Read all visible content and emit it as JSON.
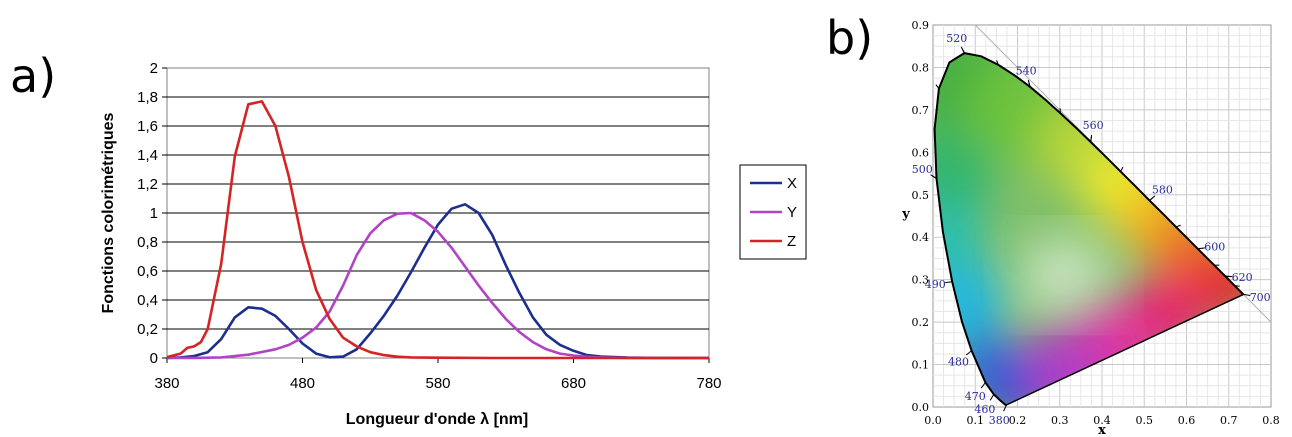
{
  "panels": [
    {
      "label": "a)"
    },
    {
      "label": "b)"
    }
  ],
  "chart_data": [
    {
      "type": "line",
      "title": "",
      "xlabel": "Longueur d'onde λ [nm]",
      "ylabel": "Fonctions colorimétriques",
      "xlim": [
        380,
        780
      ],
      "ylim": [
        0,
        2
      ],
      "x_ticks": [
        "380",
        "480",
        "580",
        "680",
        "780"
      ],
      "y_ticks": [
        "0",
        "0,2",
        "0,4",
        "0,6",
        "0,8",
        "1",
        "1,2",
        "1,4",
        "1,6",
        "1,8",
        "2"
      ],
      "grid": "horizontal",
      "legend": "right",
      "series": [
        {
          "name": "X",
          "color": "#1c2f8f",
          "x": [
            380,
            390,
            400,
            410,
            420,
            430,
            440,
            450,
            460,
            470,
            480,
            490,
            500,
            510,
            520,
            530,
            540,
            550,
            560,
            570,
            580,
            590,
            600,
            610,
            620,
            630,
            640,
            650,
            660,
            670,
            680,
            690,
            700,
            720,
            740,
            780
          ],
          "y": [
            0.001,
            0.004,
            0.014,
            0.04,
            0.13,
            0.28,
            0.35,
            0.34,
            0.29,
            0.2,
            0.1,
            0.03,
            0.005,
            0.01,
            0.06,
            0.17,
            0.29,
            0.43,
            0.59,
            0.76,
            0.92,
            1.03,
            1.06,
            1.0,
            0.85,
            0.64,
            0.45,
            0.28,
            0.16,
            0.09,
            0.05,
            0.02,
            0.01,
            0.003,
            0.001,
            0
          ]
        },
        {
          "name": "Y",
          "color": "#b044c4",
          "x": [
            380,
            400,
            420,
            440,
            460,
            470,
            480,
            490,
            500,
            510,
            520,
            530,
            540,
            550,
            560,
            570,
            580,
            590,
            600,
            610,
            620,
            630,
            640,
            650,
            660,
            670,
            680,
            690,
            700,
            720,
            740,
            780
          ],
          "y": [
            0,
            0.0004,
            0.004,
            0.023,
            0.06,
            0.09,
            0.14,
            0.21,
            0.32,
            0.5,
            0.71,
            0.86,
            0.95,
            0.995,
            1.0,
            0.95,
            0.87,
            0.76,
            0.63,
            0.5,
            0.38,
            0.27,
            0.18,
            0.11,
            0.06,
            0.03,
            0.017,
            0.008,
            0.004,
            0.001,
            0,
            0
          ]
        },
        {
          "name": "Z",
          "color": "#d42424",
          "x": [
            380,
            390,
            395,
            400,
            405,
            410,
            420,
            430,
            440,
            450,
            460,
            470,
            480,
            490,
            500,
            510,
            520,
            530,
            540,
            550,
            560,
            580,
            620,
            780
          ],
          "y": [
            0.006,
            0.03,
            0.07,
            0.08,
            0.11,
            0.2,
            0.65,
            1.39,
            1.75,
            1.77,
            1.6,
            1.25,
            0.8,
            0.47,
            0.27,
            0.14,
            0.08,
            0.04,
            0.02,
            0.009,
            0.004,
            0.002,
            0,
            0
          ]
        }
      ]
    },
    {
      "type": "scatter",
      "title": "",
      "xlabel": "x",
      "ylabel": "y",
      "xlim": [
        0.0,
        0.8
      ],
      "ylim": [
        0.0,
        0.9
      ],
      "x_ticks": [
        "0.0",
        "0.1",
        "0.2",
        "0.3",
        "0.4",
        "0.5",
        "0.6",
        "0.7",
        "0.8"
      ],
      "y_ticks": [
        "0.0",
        "0.1",
        "0.2",
        "0.3",
        "0.4",
        "0.5",
        "0.6",
        "0.7",
        "0.8",
        "0.9"
      ],
      "grid": "on",
      "locus": {
        "x": [
          0.1741,
          0.1738,
          0.1733,
          0.1726,
          0.1714,
          0.1689,
          0.1644,
          0.1566,
          0.144,
          0.1241,
          0.0913,
          0.0687,
          0.0454,
          0.0235,
          0.0082,
          0.0039,
          0.0139,
          0.0389,
          0.0743,
          0.1142,
          0.1547,
          0.1929,
          0.2296,
          0.2658,
          0.3016,
          0.3373,
          0.3731,
          0.4087,
          0.4441,
          0.4788,
          0.5125,
          0.5448,
          0.5752,
          0.6029,
          0.627,
          0.6482,
          0.6658,
          0.6801,
          0.6915,
          0.7006,
          0.714,
          0.7347
        ],
        "y": [
          0.005,
          0.0049,
          0.0048,
          0.0048,
          0.0051,
          0.0069,
          0.0109,
          0.0177,
          0.0297,
          0.0578,
          0.1327,
          0.2007,
          0.295,
          0.4127,
          0.5384,
          0.6548,
          0.7502,
          0.812,
          0.8338,
          0.8262,
          0.8059,
          0.7816,
          0.7543,
          0.7243,
          0.6923,
          0.6589,
          0.6245,
          0.5896,
          0.5547,
          0.5202,
          0.4866,
          0.4544,
          0.4242,
          0.3965,
          0.3725,
          0.3514,
          0.334,
          0.3197,
          0.3083,
          0.2993,
          0.2859,
          0.2653
        ]
      },
      "wavelength_labels": [
        {
          "label": "380",
          "x": 0.1741,
          "y": 0.005
        },
        {
          "label": "460",
          "x": 0.144,
          "y": 0.0297
        },
        {
          "label": "470",
          "x": 0.1241,
          "y": 0.0578
        },
        {
          "label": "480",
          "x": 0.0913,
          "y": 0.1327
        },
        {
          "label": "490",
          "x": 0.0454,
          "y": 0.295
        },
        {
          "label": "500",
          "x": 0.0082,
          "y": 0.5384
        },
        {
          "label": "520",
          "x": 0.0743,
          "y": 0.8338
        },
        {
          "label": "540",
          "x": 0.2296,
          "y": 0.7543
        },
        {
          "label": "560",
          "x": 0.3731,
          "y": 0.6245
        },
        {
          "label": "580",
          "x": 0.5125,
          "y": 0.4866
        },
        {
          "label": "600",
          "x": 0.627,
          "y": 0.3725
        },
        {
          "label": "620",
          "x": 0.6915,
          "y": 0.3083
        },
        {
          "label": "700",
          "x": 0.7347,
          "y": 0.2653
        }
      ]
    }
  ]
}
